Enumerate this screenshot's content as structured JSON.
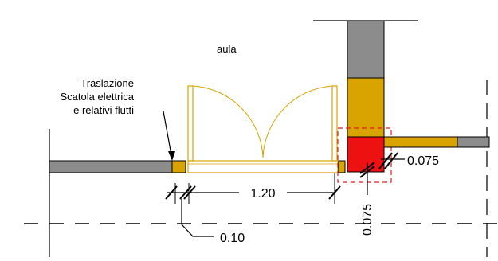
{
  "room_label": "aula",
  "annotation": {
    "lines": [
      "Traslazione",
      "Scatola elettrica",
      "e relativi flutti"
    ]
  },
  "dimensions": {
    "door_width": "1.20",
    "offset_left": "0.10",
    "offset_right_h": "0.075",
    "offset_right_v": "0.075"
  },
  "colors": {
    "wall_gray": "#8c8c8c",
    "insulation_ochre": "#d9a300",
    "highlight_red": "#ee1111",
    "dashed_red": "#dd2222",
    "door_outline": "#d9a300",
    "line": "#000000"
  }
}
